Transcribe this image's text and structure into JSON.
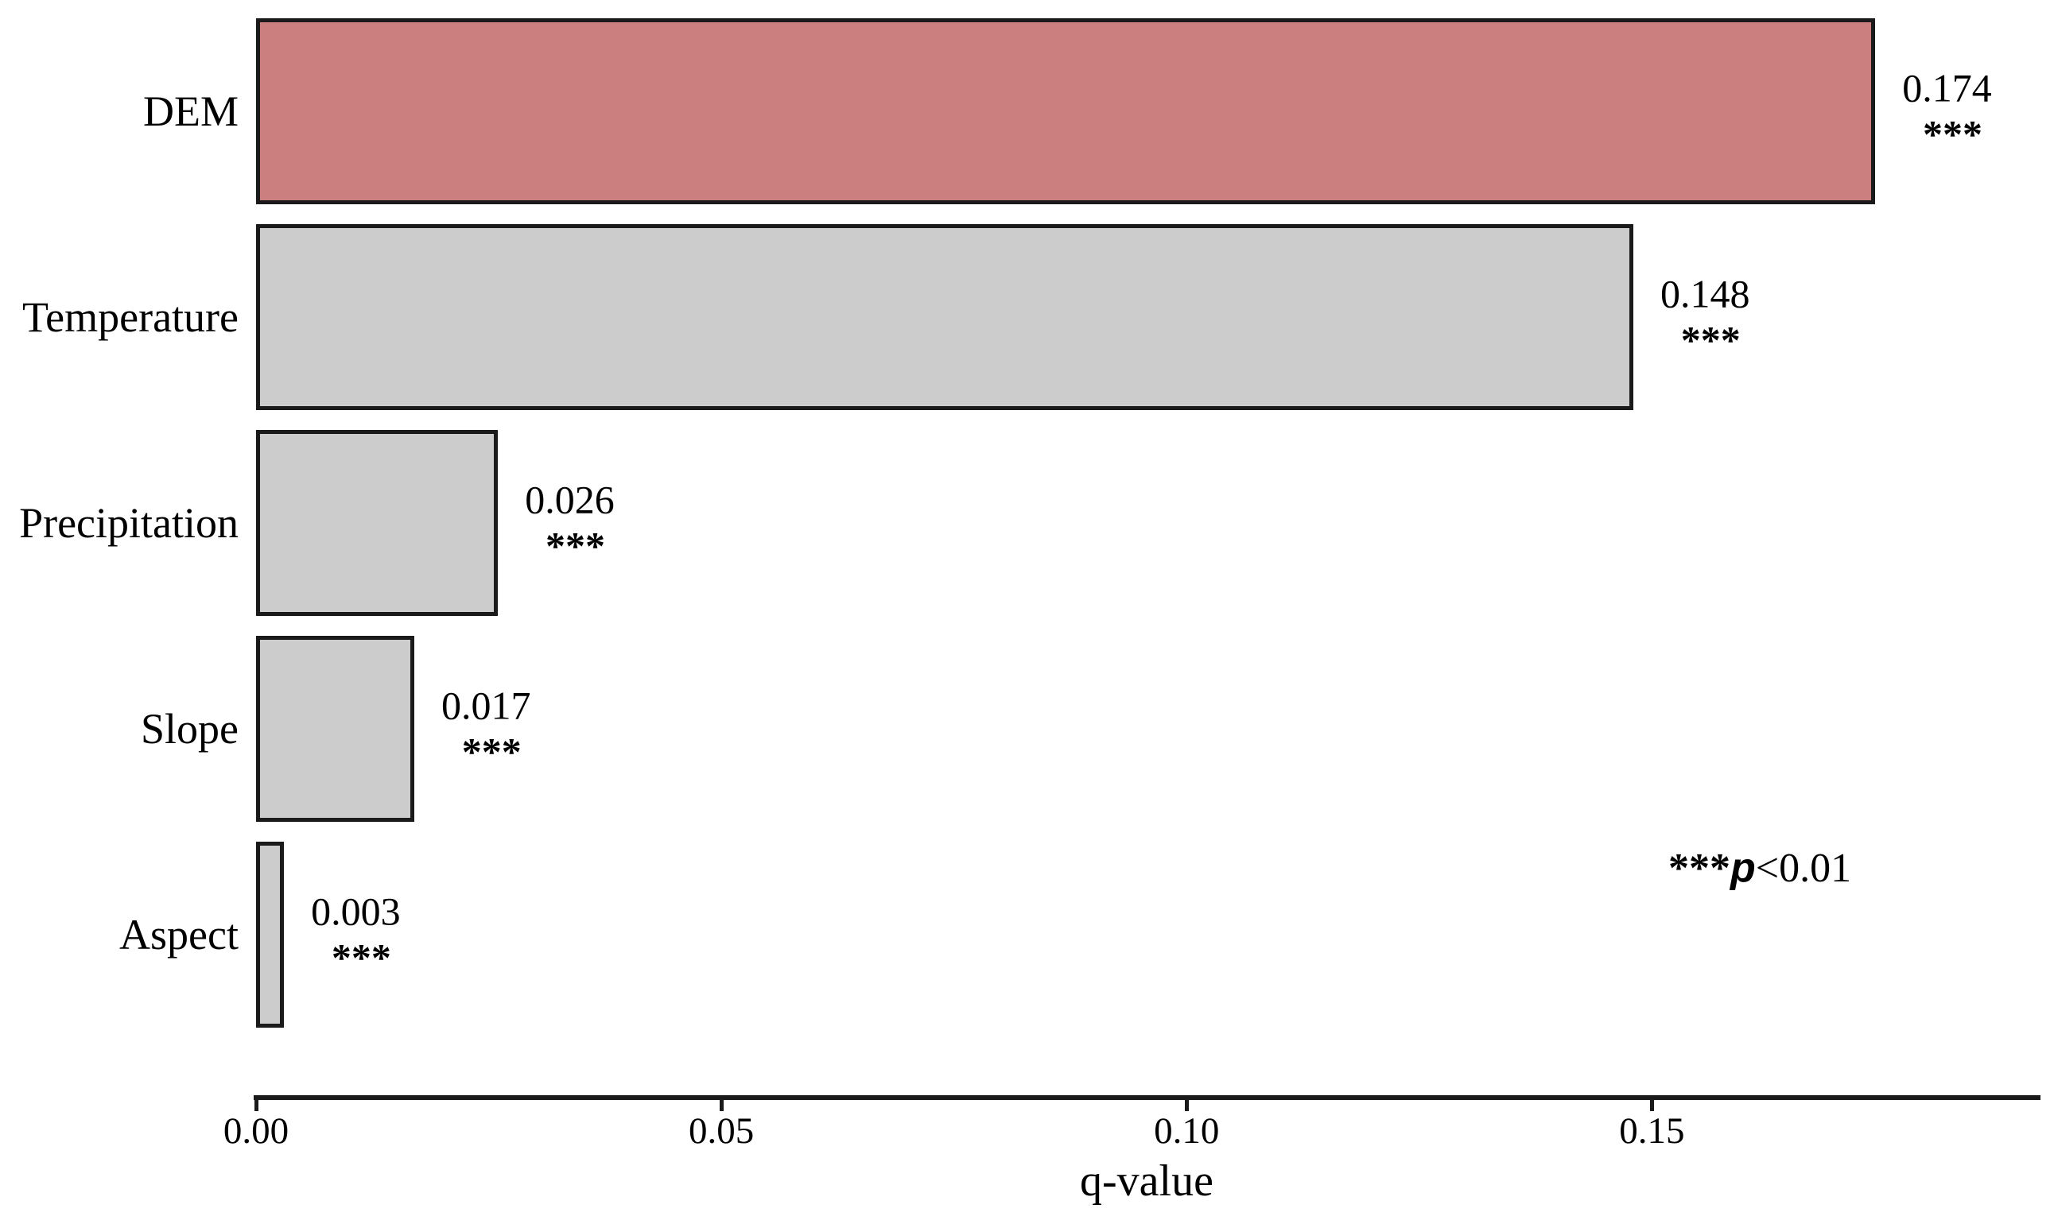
{
  "chart_data": {
    "type": "bar",
    "orientation": "horizontal",
    "title": "",
    "categories": [
      "DEM",
      "Temperature",
      "Precipitation",
      "Slope",
      "Aspect"
    ],
    "values": [
      0.174,
      0.148,
      0.026,
      0.017,
      0.003
    ],
    "value_labels": [
      "0.174",
      "0.148",
      "0.026",
      "0.017",
      "0.003"
    ],
    "significance": [
      "***",
      "***",
      "***",
      "***",
      "***"
    ],
    "bar_colors": [
      "#CB807F",
      "#CCCCCC",
      "#CCCCCC",
      "#CCCCCC",
      "#CCCCCC"
    ],
    "bar_border_color": "#1a1a1a",
    "xlabel": "q-value",
    "x_ticks": [
      0,
      0.05,
      0.1,
      0.15
    ],
    "x_tick_labels": [
      "0.00",
      "0.05",
      "0.10",
      "0.15"
    ],
    "xlim": [
      0,
      0.1915
    ],
    "grid": false,
    "legend": null,
    "annotation": {
      "stars": "***",
      "p_symbol": "p",
      "condition": "<0.01",
      "full_text": "***p<0.01"
    }
  }
}
